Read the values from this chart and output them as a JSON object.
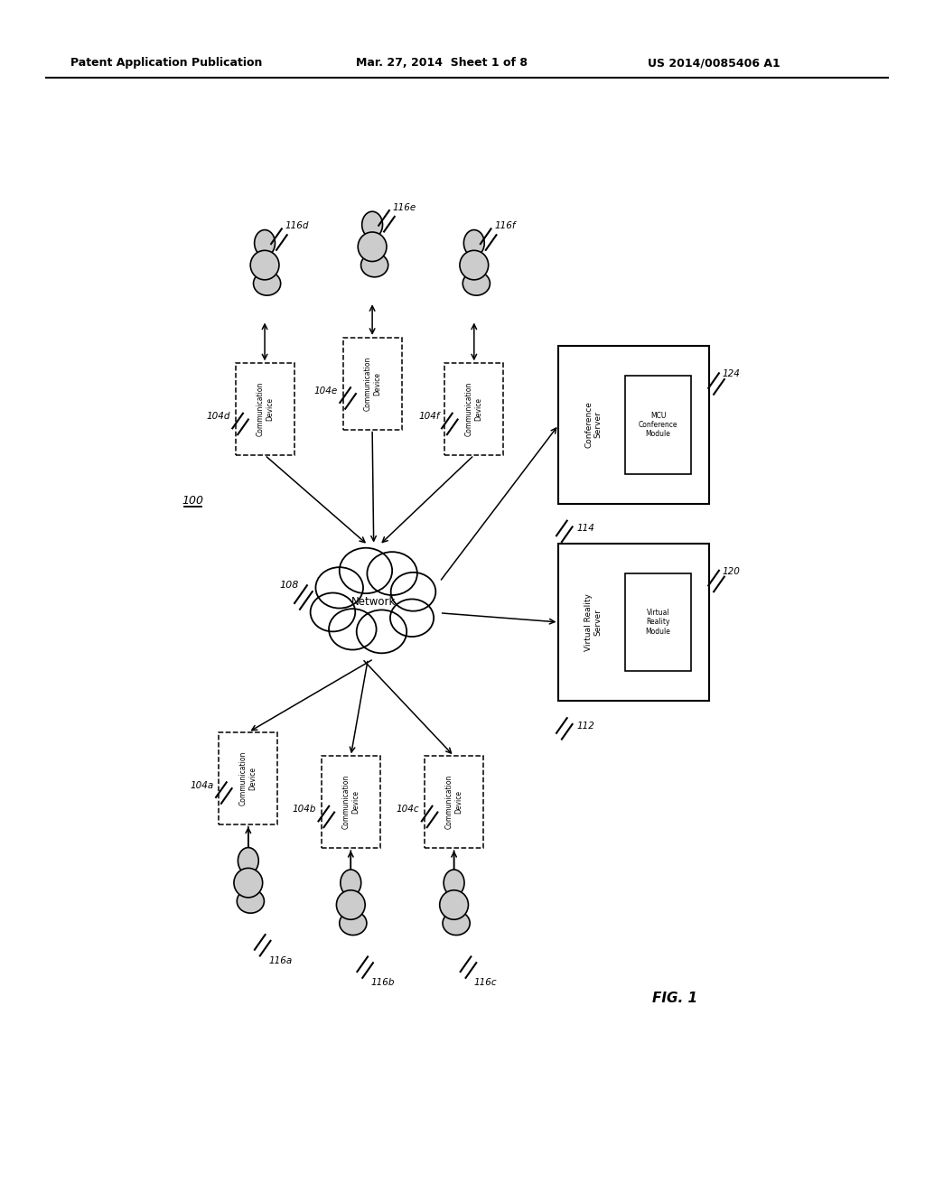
{
  "title_left": "Patent Application Publication",
  "title_center": "Mar. 27, 2014  Sheet 1 of 8",
  "title_right": "US 2014/0085406 A1",
  "fig_label": "FIG. 1",
  "system_label": "100",
  "network_label": "108",
  "bg_color": "#ffffff"
}
